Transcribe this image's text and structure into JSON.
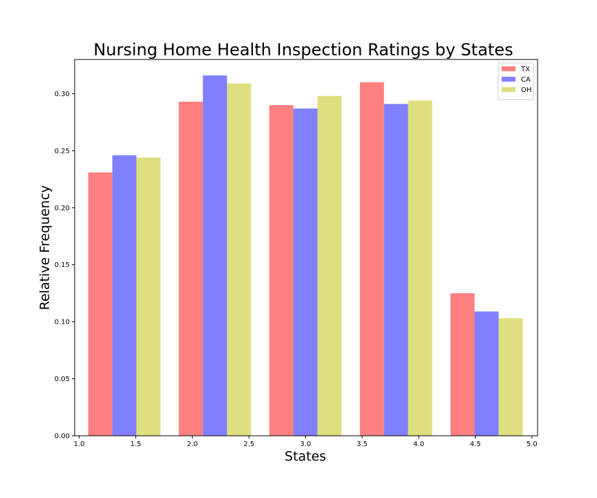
{
  "chart_data": {
    "type": "bar",
    "title": "Nursing Home Health Inspection Ratings by States",
    "xlabel": "States",
    "ylabel": "Relative Frequency",
    "xlim": [
      0.96,
      5.05
    ],
    "ylim": [
      0,
      0.33
    ],
    "x_ticks": [
      "1.0",
      "1.5",
      "2.0",
      "2.5",
      "3.0",
      "3.5",
      "4.0",
      "4.5",
      "5.0"
    ],
    "y_ticks": [
      "0.00",
      "0.05",
      "0.10",
      "0.15",
      "0.20",
      "0.25",
      "0.30"
    ],
    "bar_width": 0.213,
    "group_starts": [
      1.08,
      1.88,
      2.68,
      3.48,
      4.28
    ],
    "grid": false,
    "legend_position": "top-right",
    "series": [
      {
        "name": "TX",
        "color": "#ff8080",
        "values": [
          0.231,
          0.293,
          0.29,
          0.31,
          0.125
        ]
      },
      {
        "name": "CA",
        "color": "#8080ff",
        "values": [
          0.246,
          0.316,
          0.287,
          0.291,
          0.109
        ]
      },
      {
        "name": "OH",
        "color": "#dfdf80",
        "values": [
          0.244,
          0.309,
          0.298,
          0.294,
          0.103
        ]
      }
    ]
  }
}
